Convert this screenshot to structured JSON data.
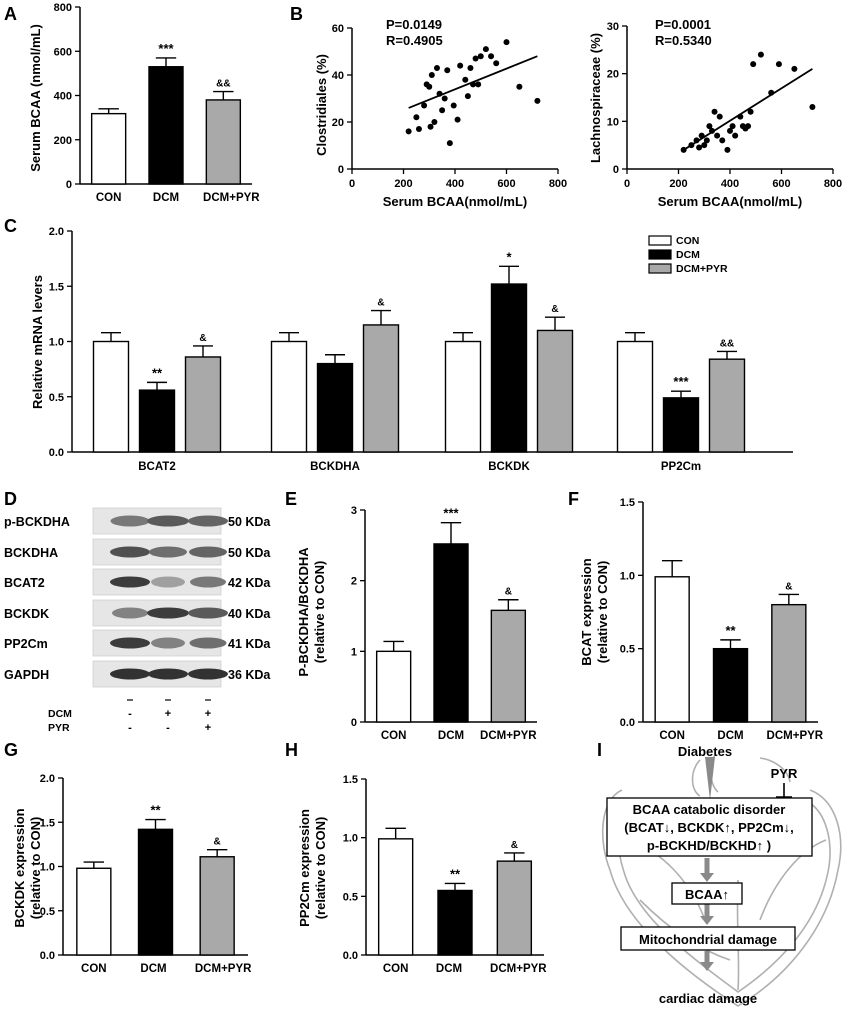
{
  "chart_data": [
    {
      "id": "A",
      "panel_label": "A",
      "type": "bar",
      "ylabel": "Serum BCAA (nmol/mL)",
      "ylim": [
        0,
        800
      ],
      "yticks": [
        0,
        200,
        400,
        600,
        800
      ],
      "categories": [
        "CON",
        "DCM",
        "DCM+PYR"
      ],
      "values": [
        318,
        530,
        380
      ],
      "errors": [
        22,
        40,
        38
      ],
      "significance": [
        "",
        "***",
        "&&"
      ]
    },
    {
      "id": "B1",
      "panel_label": "B",
      "type": "scatter",
      "xlabel": "Serum BCAA(nmol/mL)",
      "ylabel": "Clostridiales (%)",
      "xlim": [
        0,
        800
      ],
      "ylim": [
        0,
        60
      ],
      "xticks": [
        0,
        200,
        400,
        600,
        800
      ],
      "yticks": [
        0,
        20,
        40,
        60
      ],
      "stats": [
        "P=0.0149",
        "R=0.4905"
      ],
      "points": [
        [
          220,
          16
        ],
        [
          250,
          22
        ],
        [
          260,
          17
        ],
        [
          280,
          27
        ],
        [
          290,
          36
        ],
        [
          300,
          35
        ],
        [
          305,
          18
        ],
        [
          310,
          40
        ],
        [
          320,
          20
        ],
        [
          330,
          43
        ],
        [
          340,
          32
        ],
        [
          350,
          25
        ],
        [
          360,
          30
        ],
        [
          370,
          42
        ],
        [
          380,
          11
        ],
        [
          395,
          27
        ],
        [
          410,
          21
        ],
        [
          420,
          44
        ],
        [
          440,
          38
        ],
        [
          450,
          31
        ],
        [
          460,
          43
        ],
        [
          470,
          36
        ],
        [
          480,
          47
        ],
        [
          490,
          36
        ],
        [
          500,
          48
        ],
        [
          520,
          51
        ],
        [
          540,
          48
        ],
        [
          560,
          45
        ],
        [
          600,
          54
        ],
        [
          650,
          35
        ],
        [
          720,
          29
        ]
      ],
      "fit": [
        [
          220,
          26
        ],
        [
          720,
          48
        ]
      ]
    },
    {
      "id": "B2",
      "panel_label": "",
      "type": "scatter",
      "xlabel": "Serum BCAA(nmol/mL)",
      "ylabel": "Lachnospiraceae (%)",
      "xlim": [
        0,
        800
      ],
      "ylim": [
        0,
        30
      ],
      "xticks": [
        0,
        200,
        400,
        600,
        800
      ],
      "yticks": [
        0,
        10,
        20,
        30
      ],
      "stats": [
        "P=0.0001",
        "R=0.5340"
      ],
      "points": [
        [
          220,
          4
        ],
        [
          250,
          5
        ],
        [
          270,
          6
        ],
        [
          280,
          4.5
        ],
        [
          290,
          7
        ],
        [
          300,
          5
        ],
        [
          310,
          6
        ],
        [
          320,
          9
        ],
        [
          330,
          8
        ],
        [
          340,
          12
        ],
        [
          350,
          7
        ],
        [
          360,
          11
        ],
        [
          370,
          6
        ],
        [
          390,
          4
        ],
        [
          400,
          8
        ],
        [
          410,
          9
        ],
        [
          420,
          7
        ],
        [
          440,
          11
        ],
        [
          450,
          9
        ],
        [
          460,
          8.5
        ],
        [
          470,
          9
        ],
        [
          480,
          12
        ],
        [
          490,
          22
        ],
        [
          520,
          24
        ],
        [
          560,
          16
        ],
        [
          590,
          22
        ],
        [
          650,
          21
        ],
        [
          720,
          13
        ]
      ],
      "fit": [
        [
          220,
          4
        ],
        [
          720,
          21
        ]
      ]
    },
    {
      "id": "C",
      "panel_label": "C",
      "type": "bar",
      "ylabel": "Relative mRNA levers",
      "ylim": [
        0,
        2.0
      ],
      "yticks": [
        "0.0",
        "0.5",
        "1.0",
        "1.5",
        "2.0"
      ],
      "categories": [
        "BCAT2",
        "BCKDHA",
        "BCKDK",
        "PP2Cm"
      ],
      "series": [
        {
          "name": "CON",
          "values": [
            1.0,
            1.0,
            1.0,
            1.0
          ],
          "errors": [
            0.08,
            0.08,
            0.08,
            0.08
          ],
          "significance": [
            "",
            "",
            "",
            ""
          ]
        },
        {
          "name": "DCM",
          "values": [
            0.56,
            0.8,
            1.52,
            0.49
          ],
          "errors": [
            0.07,
            0.08,
            0.16,
            0.06
          ],
          "significance": [
            "**",
            "",
            "*",
            "***"
          ]
        },
        {
          "name": "DCM+PYR",
          "values": [
            0.86,
            1.15,
            1.1,
            0.84
          ],
          "errors": [
            0.1,
            0.13,
            0.12,
            0.07
          ],
          "significance": [
            "&",
            "&",
            "&",
            "&&"
          ]
        }
      ]
    },
    {
      "id": "E",
      "panel_label": "E",
      "type": "bar",
      "ylabel": "P-BCKDHA/BCKDHA (relative to CON)",
      "ylabel_lines": [
        "P-BCKDHA/BCKDHA",
        "(relative to CON)"
      ],
      "ylim": [
        0,
        3
      ],
      "yticks": [
        "0",
        "1",
        "2",
        "3"
      ],
      "categories": [
        "CON",
        "DCM",
        "DCM+PYR"
      ],
      "values": [
        1.0,
        2.52,
        1.58
      ],
      "errors": [
        0.14,
        0.3,
        0.15
      ],
      "significance": [
        "",
        "***",
        "&"
      ]
    },
    {
      "id": "F",
      "panel_label": "F",
      "type": "bar",
      "ylabel": "BCAT expression (relative to CON)",
      "ylabel_lines": [
        "BCAT expression",
        "(relative to CON)"
      ],
      "ylim": [
        0,
        1.5
      ],
      "yticks": [
        "0.0",
        "0.5",
        "1.0",
        "1.5"
      ],
      "categories": [
        "CON",
        "DCM",
        "DCM+PYR"
      ],
      "values": [
        0.99,
        0.5,
        0.8
      ],
      "errors": [
        0.11,
        0.06,
        0.07
      ],
      "significance": [
        "",
        "**",
        "&"
      ]
    },
    {
      "id": "G",
      "panel_label": "G",
      "type": "bar",
      "ylabel": "BCKDK expression (relative to CON)",
      "ylabel_lines": [
        "BCKDK expression",
        "(relative to CON)"
      ],
      "ylim": [
        0,
        2.0
      ],
      "yticks": [
        "0.0",
        "0.5",
        "1.0",
        "1.5",
        "2.0"
      ],
      "categories": [
        "CON",
        "DCM",
        "DCM+PYR"
      ],
      "values": [
        0.98,
        1.42,
        1.11
      ],
      "errors": [
        0.07,
        0.11,
        0.08
      ],
      "significance": [
        "",
        "**",
        "&"
      ]
    },
    {
      "id": "H",
      "panel_label": "H",
      "type": "bar",
      "ylabel": "PP2Cm expression (relative to CON)",
      "ylabel_lines": [
        "PP2Cm expression",
        "(relative to CON)"
      ],
      "ylim": [
        0,
        1.5
      ],
      "yticks": [
        "0.0",
        "0.5",
        "1.0",
        "1.5"
      ],
      "categories": [
        "CON",
        "DCM",
        "DCM+PYR"
      ],
      "values": [
        0.99,
        0.55,
        0.8
      ],
      "errors": [
        0.09,
        0.06,
        0.07
      ],
      "significance": [
        "",
        "**",
        "&"
      ]
    }
  ],
  "blot": {
    "panel_label": "D",
    "rows": [
      {
        "protein": "p-BCKDHA",
        "size": "50 KDa"
      },
      {
        "protein": "BCKDHA",
        "size": "50 KDa"
      },
      {
        "protein": "BCAT2",
        "size": "42 KDa"
      },
      {
        "protein": "BCKDK",
        "size": "40 KDa"
      },
      {
        "protein": "PP2Cm",
        "size": "41 KDa"
      },
      {
        "protein": "GAPDH",
        "size": "36 KDa"
      }
    ],
    "treatments": [
      {
        "name": "DCM",
        "marks": [
          "-",
          "+",
          "+"
        ]
      },
      {
        "name": "PYR",
        "marks": [
          "-",
          "-",
          "+"
        ]
      }
    ]
  },
  "schematic": {
    "panel_label": "I",
    "diabetes": "Diabetes",
    "pyr": "PYR",
    "disorder_lines": [
      "BCAA catabolic disorder",
      "(BCAT↓, BCKDK↑, PP2Cm↓,",
      "p-BCKHD/BCKHD↑ )"
    ],
    "bcaa": "BCAA↑",
    "mito": "Mitochondrial damage",
    "cardiac": "cardiac damage"
  },
  "colors": {
    "con": "#ffffff",
    "dcm": "#000000",
    "pyr": "#a9a9a9",
    "arrow": "#8a8a8a",
    "heart": "#b0b0b0"
  }
}
